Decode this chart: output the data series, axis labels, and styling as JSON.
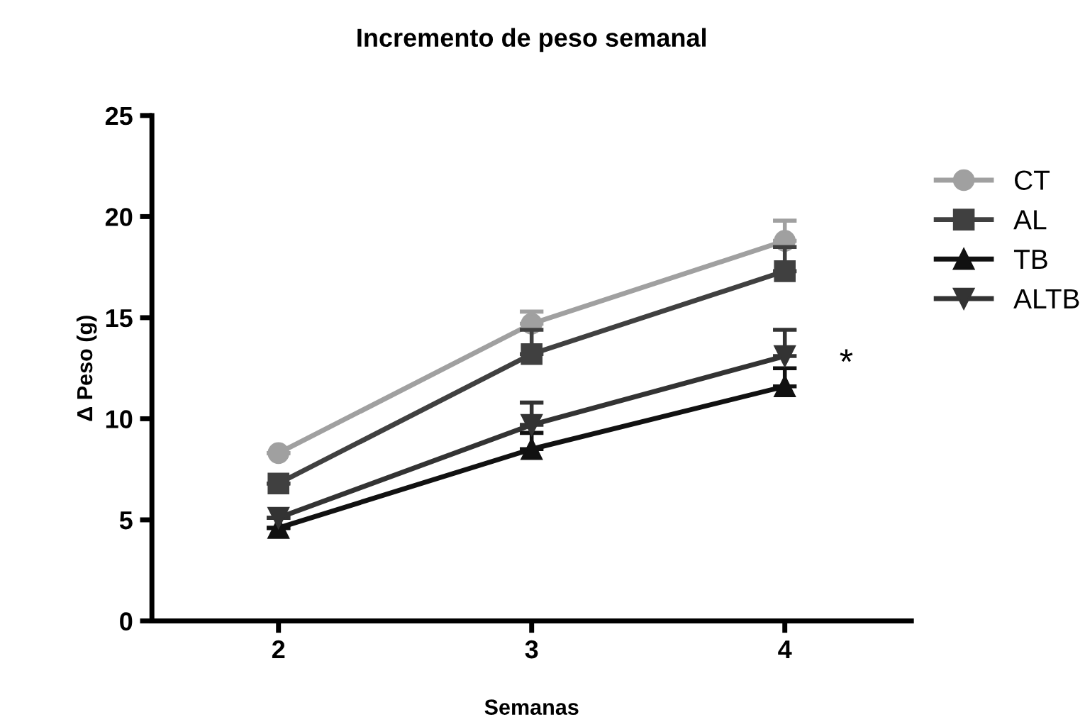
{
  "chart_data": {
    "type": "line",
    "title": "Incremento de peso semanal",
    "xlabel": "Semanas",
    "ylabel": "Δ Peso (g)",
    "x": [
      2,
      3,
      4
    ],
    "xlim": [
      1.5,
      4.5
    ],
    "xticks": [
      2,
      3,
      4
    ],
    "ylim": [
      0,
      25
    ],
    "yticks": [
      0,
      5,
      10,
      15,
      20,
      25
    ],
    "grid": false,
    "legend": "right",
    "line_style": "solid",
    "series": [
      {
        "name": "CT",
        "color": "#a0a0a0",
        "marker": "circle",
        "values": [
          8.3,
          14.7,
          18.8
        ],
        "errors": [
          [
            8.3,
            8.3
          ],
          [
            14.7,
            15.3
          ],
          [
            18.8,
            19.8
          ]
        ]
      },
      {
        "name": "AL",
        "color": "#404040",
        "marker": "square",
        "values": [
          6.8,
          13.2,
          17.3
        ],
        "errors": [
          [
            6.8,
            6.8
          ],
          [
            13.2,
            14.4
          ],
          [
            17.3,
            18.5
          ]
        ]
      },
      {
        "name": "TB",
        "color": "#111111",
        "marker": "triangle",
        "values": [
          4.6,
          8.5,
          11.6
        ],
        "errors": [
          [
            4.6,
            4.6
          ],
          [
            8.5,
            9.3
          ],
          [
            11.6,
            12.5
          ]
        ]
      },
      {
        "name": "ALTB",
        "color": "#333333",
        "marker": "triangle_down",
        "values": [
          5.1,
          9.7,
          13.1
        ],
        "errors": [
          [
            5.1,
            5.1
          ],
          [
            9.7,
            10.8
          ],
          [
            13.1,
            14.4
          ]
        ]
      }
    ],
    "annotations": [
      "*"
    ]
  }
}
